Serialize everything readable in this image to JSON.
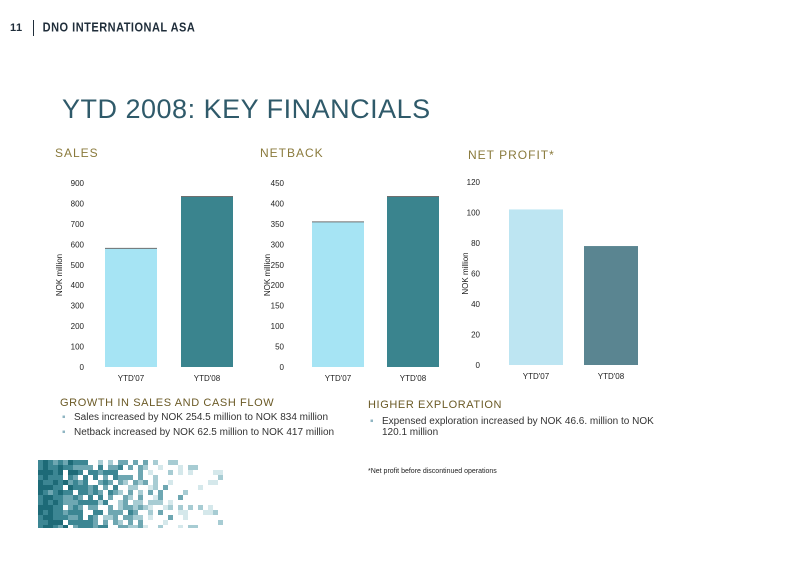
{
  "header": {
    "page_number": "11",
    "company": "DNO INTERNATIONAL ASA"
  },
  "title": "YTD 2008: KEY FINANCIALS",
  "charts": {
    "sales": {
      "heading": "SALES"
    },
    "netback": {
      "heading": "NETBACK"
    },
    "net_profit": {
      "heading": "NET PROFIT*"
    }
  },
  "chart_data": [
    {
      "type": "bar",
      "title": "SALES",
      "categories": [
        "YTD'07",
        "YTD'08"
      ],
      "values": [
        580,
        834
      ],
      "ylabel": "NOK million",
      "ylim": [
        0,
        900
      ],
      "yticks": [
        0,
        100,
        200,
        300,
        400,
        500,
        600,
        700,
        800,
        900
      ],
      "colors": [
        "#a6e4f4",
        "#3a848e"
      ]
    },
    {
      "type": "bar",
      "title": "NETBACK",
      "categories": [
        "YTD'07",
        "YTD'08"
      ],
      "values": [
        355,
        417
      ],
      "ylabel": "NOK million",
      "ylim": [
        0,
        450
      ],
      "yticks": [
        0,
        50,
        100,
        150,
        200,
        250,
        300,
        350,
        400,
        450
      ],
      "colors": [
        "#a6e4f4",
        "#3a848e"
      ]
    },
    {
      "type": "bar",
      "title": "NET PROFIT*",
      "categories": [
        "YTD'07",
        "YTD'08"
      ],
      "values": [
        102,
        78
      ],
      "ylabel": "NOK million",
      "ylim": [
        0,
        120
      ],
      "yticks": [
        0,
        20,
        40,
        60,
        80,
        100,
        120
      ],
      "colors": [
        "#bde5f2",
        "#5a8591"
      ]
    }
  ],
  "growth": {
    "heading": "GROWTH IN SALES AND CASH FLOW",
    "bullets": [
      "Sales increased by NOK 254.5 million to NOK 834 million",
      "Netback increased by NOK 62.5 million to NOK 417 million"
    ]
  },
  "exploration": {
    "heading": "HIGHER EXPLORATION",
    "bullets": [
      "Expensed exploration increased by NOK 46.6. million to NOK 120.1 million"
    ]
  },
  "footnote": "*Net profit before discontinued operations",
  "colors": {
    "title": "#2f5a6a",
    "section": "#8a7a3c",
    "bullet": "#8fb5c2",
    "mosaic": "#1f6a78"
  }
}
